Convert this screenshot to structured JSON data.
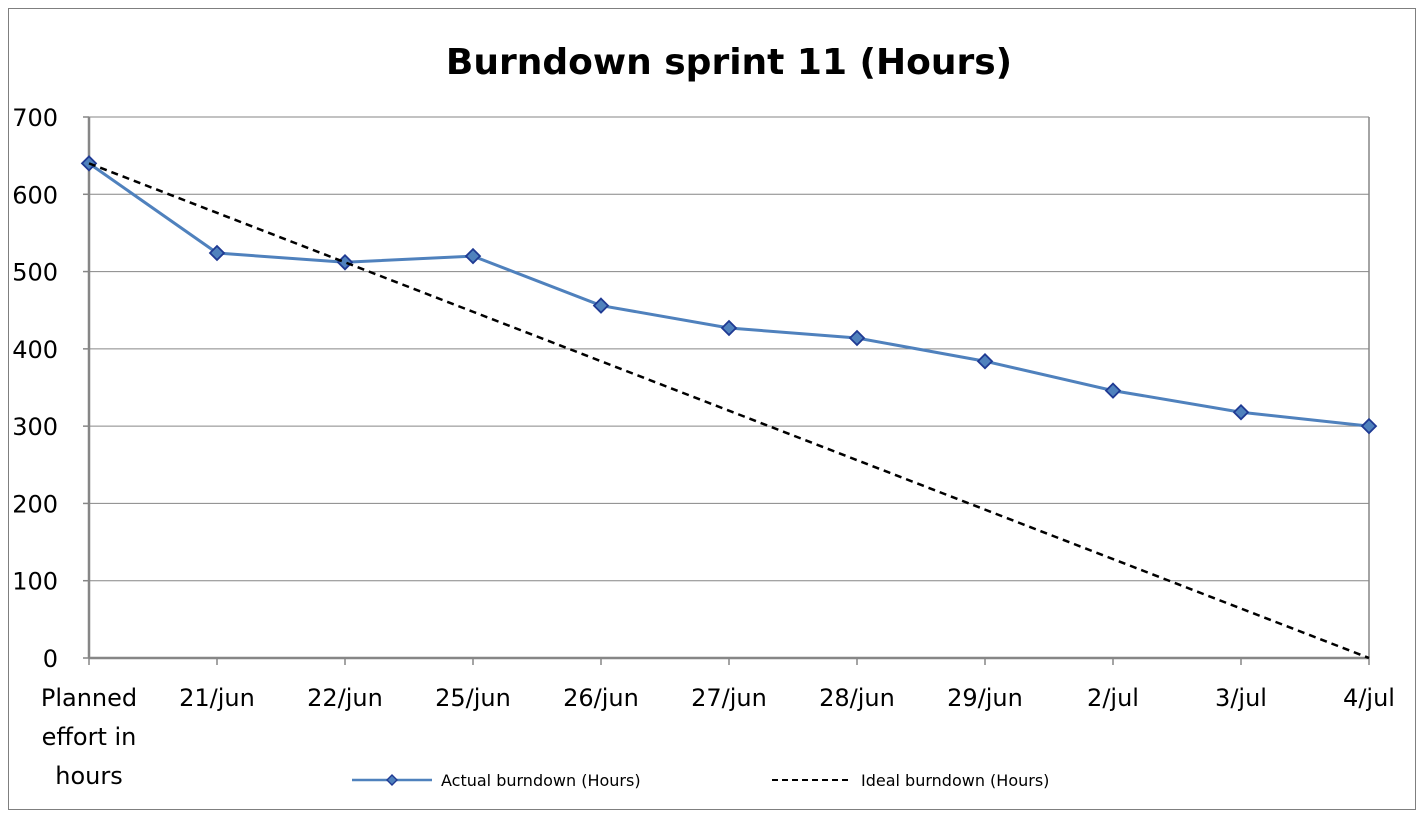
{
  "chart_data": {
    "type": "line",
    "title": "Burndown sprint 11 (Hours)",
    "xlabel": "",
    "ylabel": "",
    "categories": [
      "Planned effort in hours",
      "21/jun",
      "22/jun",
      "25/jun",
      "26/jun",
      "27/jun",
      "28/jun",
      "29/jun",
      "2/jul",
      "3/jul",
      "4/jul"
    ],
    "category_lines": [
      [
        "Planned",
        "effort in",
        "hours"
      ],
      [
        "21/jun"
      ],
      [
        "22/jun"
      ],
      [
        "25/jun"
      ],
      [
        "26/jun"
      ],
      [
        "27/jun"
      ],
      [
        "28/jun"
      ],
      [
        "29/jun"
      ],
      [
        "2/jul"
      ],
      [
        "3/jul"
      ],
      [
        "4/jul"
      ]
    ],
    "ylim": [
      0,
      700
    ],
    "yticks": [
      0,
      100,
      200,
      300,
      400,
      500,
      600,
      700
    ],
    "grid": "horizontal",
    "legend_position": "bottom",
    "series": [
      {
        "name": "Actual burndown (Hours)",
        "style": "solid-with-diamond-markers",
        "color": "#4f81bd",
        "marker_fill": "#4f81bd",
        "marker_stroke": "#1f3a93",
        "values": [
          640,
          524,
          512,
          520,
          456,
          427,
          414,
          384,
          346,
          318,
          300
        ]
      },
      {
        "name": "Ideal burndown (Hours)",
        "style": "dashed",
        "color": "#000000",
        "values": [
          640,
          576,
          512,
          448,
          384,
          320,
          256,
          192,
          128,
          64,
          0
        ]
      }
    ]
  }
}
